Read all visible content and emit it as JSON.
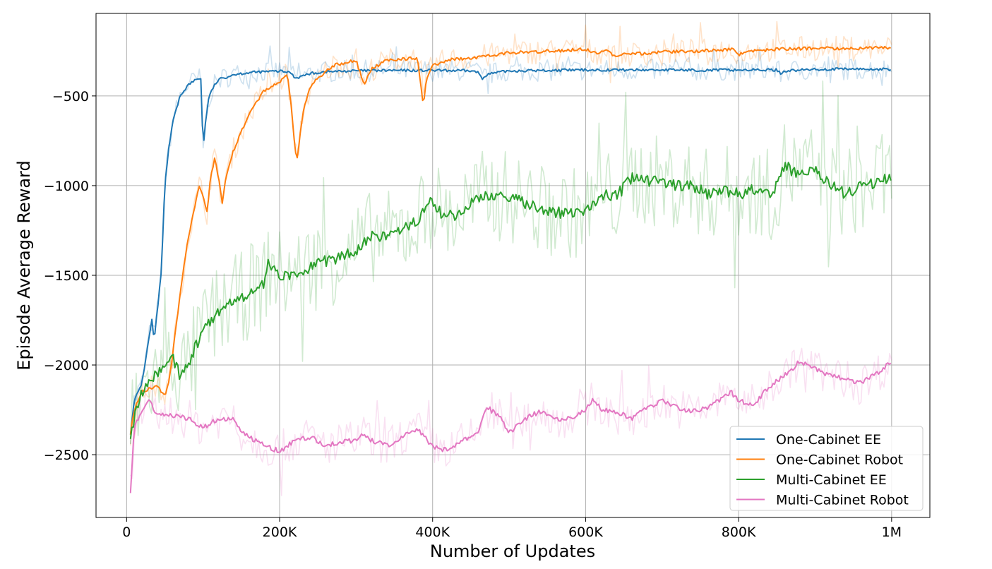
{
  "chart_data": {
    "type": "line",
    "title": "",
    "xlabel": "Number of Updates",
    "ylabel": "Episode Average Reward",
    "xlim": [
      -40000,
      1050000
    ],
    "ylim": [
      -2850,
      -40
    ],
    "x_ticks": [
      {
        "value": 0,
        "label": "0"
      },
      {
        "value": 200000,
        "label": "200K"
      },
      {
        "value": 400000,
        "label": "400K"
      },
      {
        "value": 600000,
        "label": "600K"
      },
      {
        "value": 800000,
        "label": "800K"
      },
      {
        "value": 1000000,
        "label": "1M"
      }
    ],
    "y_ticks": [
      {
        "value": -500,
        "label": "−500"
      },
      {
        "value": -1000,
        "label": "−1000"
      },
      {
        "value": -1500,
        "label": "−1500"
      },
      {
        "value": -2000,
        "label": "−2000"
      },
      {
        "value": -2500,
        "label": "−2500"
      }
    ],
    "grid": true,
    "legend_position": "lower-right",
    "series": [
      {
        "name": "One-Cabinet EE",
        "color": "#1f77b4",
        "raw_noise": 60,
        "x": [
          5000,
          10000,
          20000,
          30000,
          33000,
          36000,
          40000,
          45000,
          50000,
          55000,
          60000,
          70000,
          80000,
          90000,
          97000,
          100000,
          103000,
          107000,
          112000,
          120000,
          140000,
          160000,
          180000,
          200000,
          215000,
          220000,
          225000,
          240000,
          260000,
          300000,
          350000,
          400000,
          450000,
          460000,
          465000,
          470000,
          500000,
          550000,
          600000,
          650000,
          700000,
          750000,
          800000,
          850000,
          855000,
          860000,
          900000,
          950000,
          1000000
        ],
        "values": [
          -2380,
          -2200,
          -2100,
          -1830,
          -1750,
          -1870,
          -1700,
          -1500,
          -1000,
          -800,
          -650,
          -500,
          -440,
          -410,
          -400,
          -800,
          -650,
          -520,
          -460,
          -410,
          -380,
          -370,
          -365,
          -362,
          -370,
          -400,
          -395,
          -375,
          -365,
          -360,
          -358,
          -358,
          -360,
          -370,
          -405,
          -380,
          -360,
          -358,
          -355,
          -355,
          -355,
          -356,
          -355,
          -355,
          -375,
          -360,
          -352,
          -350,
          -352
        ]
      },
      {
        "name": "One-Cabinet Robot",
        "color": "#ff7f0e",
        "raw_noise": 70,
        "x": [
          5000,
          10000,
          20000,
          30000,
          40000,
          50000,
          55000,
          60000,
          70000,
          80000,
          90000,
          95000,
          100000,
          105000,
          110000,
          115000,
          120000,
          125000,
          130000,
          140000,
          160000,
          180000,
          200000,
          210000,
          215000,
          220000,
          223000,
          230000,
          240000,
          250000,
          270000,
          300000,
          310000,
          320000,
          340000,
          380000,
          388000,
          392000,
          400000,
          420000,
          450000,
          500000,
          550000,
          600000,
          610000,
          630000,
          640000,
          650000,
          700000,
          750000,
          795000,
          800000,
          810000,
          850000,
          900000,
          950000,
          1000000
        ],
        "values": [
          -2380,
          -2250,
          -2150,
          -2130,
          -2120,
          -2170,
          -2100,
          -1950,
          -1600,
          -1300,
          -1100,
          -1000,
          -1060,
          -1150,
          -950,
          -850,
          -950,
          -1100,
          -950,
          -800,
          -600,
          -470,
          -420,
          -370,
          -550,
          -800,
          -850,
          -600,
          -450,
          -400,
          -330,
          -300,
          -440,
          -350,
          -300,
          -290,
          -550,
          -400,
          -330,
          -300,
          -290,
          -260,
          -250,
          -240,
          -260,
          -250,
          -290,
          -270,
          -255,
          -250,
          -240,
          -270,
          -250,
          -240,
          -235,
          -235,
          -230
        ]
      },
      {
        "name": "Multi-Cabinet EE",
        "color": "#2ca02c",
        "raw_noise": 260,
        "x": [
          5000,
          20000,
          40000,
          60000,
          70000,
          80000,
          100000,
          120000,
          140000,
          160000,
          180000,
          185000,
          200000,
          220000,
          250000,
          280000,
          300000,
          320000,
          340000,
          360000,
          380000,
          400000,
          410000,
          430000,
          450000,
          470000,
          500000,
          520000,
          550000,
          580000,
          600000,
          620000,
          640000,
          660000,
          700000,
          720000,
          740000,
          760000,
          780000,
          800000,
          820000,
          840000,
          850000,
          860000,
          880000,
          900000,
          920000,
          940000,
          960000,
          980000,
          1000000
        ],
        "values": [
          -2380,
          -2150,
          -2050,
          -1960,
          -2060,
          -2000,
          -1800,
          -1700,
          -1650,
          -1600,
          -1550,
          -1440,
          -1500,
          -1500,
          -1430,
          -1400,
          -1360,
          -1280,
          -1290,
          -1250,
          -1200,
          -1080,
          -1150,
          -1180,
          -1100,
          -1050,
          -1060,
          -1100,
          -1150,
          -1150,
          -1150,
          -1050,
          -1060,
          -960,
          -980,
          -1000,
          -1000,
          -1050,
          -1020,
          -1050,
          -1020,
          -1060,
          -1000,
          -880,
          -950,
          -900,
          -1000,
          -1050,
          -1000,
          -980,
          -960
        ]
      },
      {
        "name": "Multi-Cabinet Robot",
        "color": "#e377c2",
        "raw_noise": 110,
        "x": [
          5000,
          10000,
          20000,
          30000,
          40000,
          60000,
          80000,
          100000,
          120000,
          140000,
          150000,
          160000,
          180000,
          200000,
          220000,
          240000,
          260000,
          280000,
          300000,
          310000,
          320000,
          340000,
          360000,
          380000,
          400000,
          420000,
          440000,
          460000,
          470000,
          490000,
          500000,
          520000,
          540000,
          560000,
          580000,
          600000,
          610000,
          620000,
          640000,
          660000,
          680000,
          700000,
          720000,
          740000,
          760000,
          780000,
          790000,
          800000,
          820000,
          840000,
          860000,
          880000,
          900000,
          920000,
          940000,
          960000,
          980000,
          1000000
        ],
        "values": [
          -2700,
          -2350,
          -2250,
          -2200,
          -2280,
          -2280,
          -2300,
          -2350,
          -2300,
          -2300,
          -2380,
          -2400,
          -2450,
          -2480,
          -2420,
          -2400,
          -2450,
          -2430,
          -2420,
          -2380,
          -2420,
          -2450,
          -2400,
          -2360,
          -2450,
          -2480,
          -2420,
          -2380,
          -2230,
          -2300,
          -2380,
          -2300,
          -2260,
          -2300,
          -2300,
          -2250,
          -2190,
          -2250,
          -2260,
          -2300,
          -2240,
          -2200,
          -2240,
          -2260,
          -2240,
          -2180,
          -2150,
          -2200,
          -2220,
          -2120,
          -2060,
          -1980,
          -2020,
          -2060,
          -2080,
          -2100,
          -2050,
          -1980
        ]
      }
    ]
  }
}
